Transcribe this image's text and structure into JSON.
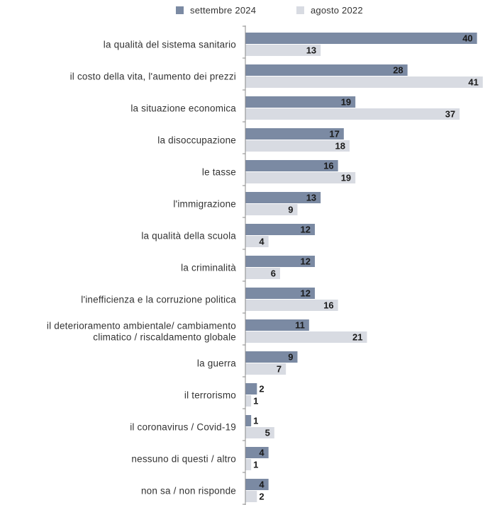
{
  "chart_data": {
    "type": "bar",
    "orientation": "horizontal",
    "categories": [
      "la qualità del sistema sanitario",
      "il costo della vita, l'aumento dei prezzi",
      "la situazione economica",
      "la disoccupazione",
      "le tasse",
      "l'immigrazione",
      "la qualità della scuola",
      "la criminalità",
      "l'inefficienza e la corruzione politica",
      [
        "il deterioramento ambientale/ cambiamento",
        "climatico / riscaldamento globale"
      ],
      "la guerra",
      "il terrorismo",
      "il coronavirus / Covid-19",
      "nessuno di questi / altro",
      "non sa / non risponde"
    ],
    "series": [
      {
        "name": "settembre 2024",
        "color": "#7b8aa3",
        "values": [
          40,
          28,
          19,
          17,
          16,
          13,
          12,
          12,
          12,
          11,
          9,
          2,
          1,
          4,
          4
        ]
      },
      {
        "name": "agosto 2022",
        "color": "#d8dbe2",
        "values": [
          13,
          41,
          37,
          18,
          19,
          9,
          4,
          6,
          16,
          21,
          7,
          1,
          5,
          1,
          2
        ]
      }
    ],
    "xlim": [
      0,
      42
    ],
    "grid": false,
    "legend_position": "top-center",
    "data_labels": true,
    "axis_color": "#888888"
  }
}
